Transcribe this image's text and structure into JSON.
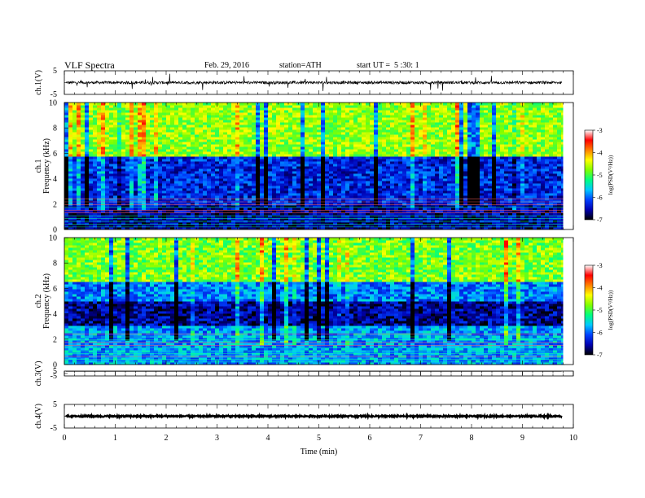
{
  "header": {
    "title": "VLF Spectra",
    "date": "Feb. 29, 2016",
    "station": "station=ATH",
    "start": "start UT =  5 :30: 1"
  },
  "chart_data": [
    {
      "type": "line",
      "panel": "ch1-waveform",
      "ylabel": "ch.1(V)",
      "ylim": [
        -5,
        5
      ],
      "yticks": [
        "5",
        "-5"
      ],
      "baseline": 0.0,
      "noise_amplitude": 0.6
    },
    {
      "type": "heatmap",
      "panel": "ch1-spectrogram",
      "ylabel": "ch.1\nFrequency (kHz)",
      "ylabel_lines": [
        "ch.1",
        "Frequency (kHz)"
      ],
      "ylim": [
        0,
        10
      ],
      "yticks": [
        "0",
        "2",
        "4",
        "6",
        "8",
        "10"
      ],
      "colorbar": {
        "label": "log(PSD(V²/Hz))",
        "range": [
          -7,
          -3
        ],
        "ticks": [
          "-3",
          "-4",
          "-5",
          "-6",
          "-7"
        ]
      },
      "level_profile": [
        {
          "from": 0.0,
          "to": 2.0,
          "level": -6.6
        },
        {
          "from": 2.0,
          "to": 5.8,
          "level": -6.3
        },
        {
          "from": 5.8,
          "to": 10.0,
          "level": -4.7
        }
      ]
    },
    {
      "type": "heatmap",
      "panel": "ch2-spectrogram",
      "ylabel": "ch.2\nFrequency (kHz)",
      "ylabel_lines": [
        "ch.2",
        "Frequency (kHz)"
      ],
      "ylim": [
        0,
        10
      ],
      "yticks": [
        "0",
        "2",
        "4",
        "6",
        "8",
        "10"
      ],
      "colorbar": {
        "label": "log(PSD(V²/Hz))",
        "range": [
          -7,
          -3
        ],
        "ticks": [
          "-3",
          "-4",
          "-5",
          "-6",
          "-7"
        ]
      },
      "level_profile": [
        {
          "from": 0.0,
          "to": 3.0,
          "level": -5.8
        },
        {
          "from": 3.0,
          "to": 5.0,
          "level": -6.6
        },
        {
          "from": 5.0,
          "to": 6.5,
          "level": -5.9
        },
        {
          "from": 6.5,
          "to": 10.0,
          "level": -4.8
        }
      ]
    },
    {
      "type": "line",
      "panel": "ch3-waveform",
      "ylabel": "ch.3(V)",
      "ylim": [
        -5,
        5
      ],
      "yticks": [
        "5",
        "-5"
      ],
      "baseline": 4.5,
      "noise_amplitude": 0.05
    },
    {
      "type": "line",
      "panel": "ch4-waveform",
      "ylabel": "ch.4(V)",
      "ylim": [
        -5,
        5
      ],
      "yticks": [
        "5",
        "-5"
      ],
      "baseline": 0.0,
      "noise_amplitude": 0.3
    }
  ],
  "xaxis": {
    "label": "Time (min)",
    "xlim": [
      0,
      10
    ],
    "data_end": 9.8,
    "ticks": [
      "0",
      "1",
      "2",
      "3",
      "4",
      "5",
      "6",
      "7",
      "8",
      "9",
      "10"
    ]
  },
  "colors": {
    "trace": "#000000",
    "colormap": [
      "#000000",
      "#0000b0",
      "#0040ff",
      "#00c8ff",
      "#00ff80",
      "#80ff00",
      "#ffff00",
      "#ff8000",
      "#ff0000",
      "#ffffff"
    ]
  }
}
